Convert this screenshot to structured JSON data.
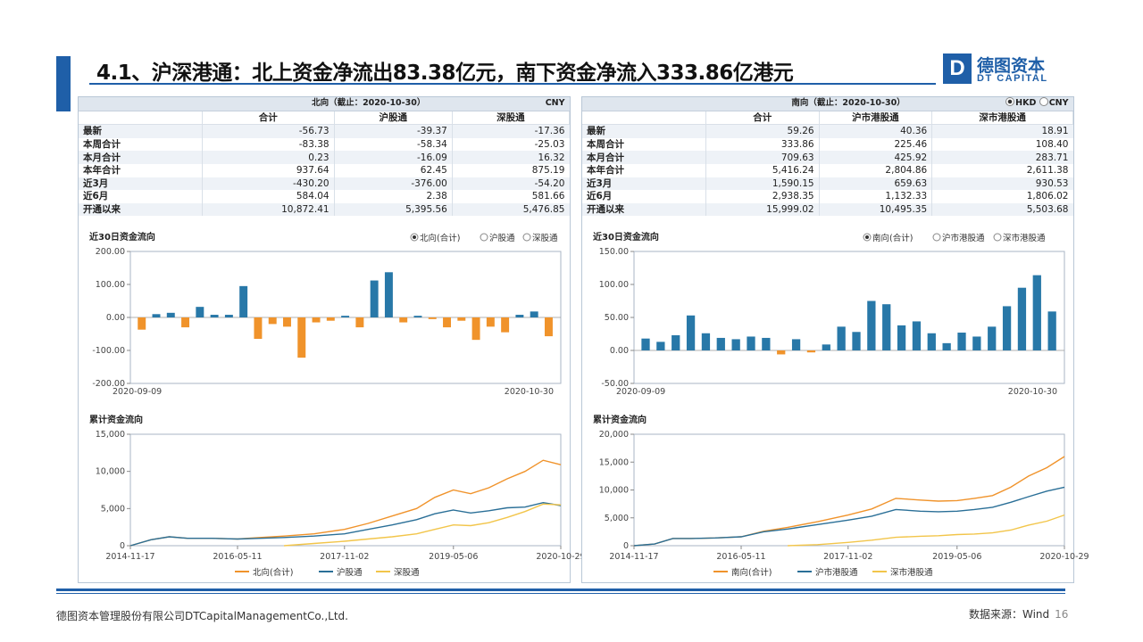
{
  "title": "4.1、沪深港通：北上资金净流出83.38亿元，南下资金净流入333.86亿港元",
  "logo": {
    "mark": "D",
    "cn": "德图资本",
    "en": "DT CAPITAL"
  },
  "footer": {
    "company": "德图资本管理股份有限公司DTCapitalManagementCo.,Ltd.",
    "source": "数据来源：Wind",
    "page": "16"
  },
  "colors": {
    "accent": "#1f5fa8",
    "bar_pos": "#2878a8",
    "bar_neg": "#f0932b",
    "line_total": "#f0932b",
    "line_a": "#2a6f97",
    "line_b": "#f2c54a"
  },
  "north": {
    "table": {
      "header": "北向（截止：2020-10-30）",
      "currency": "CNY",
      "columns": [
        "合计",
        "沪股通",
        "深股通"
      ],
      "rows": [
        {
          "label": "最新",
          "values": [
            "-56.73",
            "-39.37",
            "-17.36"
          ]
        },
        {
          "label": "本周合计",
          "values": [
            "-83.38",
            "-58.34",
            "-25.03"
          ]
        },
        {
          "label": "本月合计",
          "values": [
            "0.23",
            "-16.09",
            "16.32"
          ]
        },
        {
          "label": "本年合计",
          "values": [
            "937.64",
            "62.45",
            "875.19"
          ]
        },
        {
          "label": "近3月",
          "values": [
            "-430.20",
            "-376.00",
            "-54.20"
          ]
        },
        {
          "label": "近6月",
          "values": [
            "584.04",
            "2.38",
            "581.66"
          ]
        },
        {
          "label": "开通以来",
          "values": [
            "10,872.41",
            "5,395.56",
            "5,476.85"
          ]
        }
      ]
    },
    "chart30": {
      "title": "近30日资金流向",
      "legend": [
        "北向(合计)",
        "沪股通",
        "深股通"
      ],
      "yticks": [
        "200.00",
        "100.00",
        "0.00",
        "-100.00",
        "-200.00"
      ],
      "xticks": [
        "2020-09-09",
        "2020-10-30"
      ]
    },
    "cum": {
      "title": "累计资金流向",
      "yticks": [
        "15,000",
        "10,000",
        "5,000",
        "0"
      ],
      "xticks": [
        "2014-11-17",
        "2016-05-11",
        "2017-11-02",
        "2019-05-06",
        "2020-10-29"
      ],
      "legend": [
        "北向(合计)",
        "沪股通",
        "深股通"
      ]
    }
  },
  "south": {
    "table": {
      "header": "南向（截止：2020-10-30）",
      "currency_options": [
        "HKD",
        "CNY"
      ],
      "columns": [
        "合计",
        "沪市港股通",
        "深市港股通"
      ],
      "rows": [
        {
          "label": "最新",
          "values": [
            "59.26",
            "40.36",
            "18.91"
          ]
        },
        {
          "label": "本周合计",
          "values": [
            "333.86",
            "225.46",
            "108.40"
          ]
        },
        {
          "label": "本月合计",
          "values": [
            "709.63",
            "425.92",
            "283.71"
          ]
        },
        {
          "label": "本年合计",
          "values": [
            "5,416.24",
            "2,804.86",
            "2,611.38"
          ]
        },
        {
          "label": "近3月",
          "values": [
            "1,590.15",
            "659.63",
            "930.53"
          ]
        },
        {
          "label": "近6月",
          "values": [
            "2,938.35",
            "1,132.33",
            "1,806.02"
          ]
        },
        {
          "label": "开通以来",
          "values": [
            "15,999.02",
            "10,495.35",
            "5,503.68"
          ]
        }
      ]
    },
    "chart30": {
      "title": "近30日资金流向",
      "legend": [
        "南向(合计)",
        "沪市港股通",
        "深市港股通"
      ],
      "yticks": [
        "150.00",
        "100.00",
        "50.00",
        "0.00",
        "-50.00"
      ],
      "xticks": [
        "2020-09-09",
        "2020-10-30"
      ]
    },
    "cum": {
      "title": "累计资金流向",
      "yticks": [
        "20,000",
        "15,000",
        "10,000",
        "5,000",
        "0"
      ],
      "xticks": [
        "2014-11-17",
        "2016-05-11",
        "2017-11-02",
        "2019-05-06",
        "2020-10-29"
      ],
      "legend": [
        "南向(合计)",
        "沪市港股通",
        "深市港股通"
      ]
    }
  },
  "chart_data": [
    {
      "type": "bar",
      "title": "近30日资金流向",
      "series_name": "北向(合计)",
      "ylim": [
        -200,
        200
      ],
      "values": [
        -37,
        10,
        14,
        -30,
        32,
        8,
        8,
        95,
        -65,
        -20,
        -28,
        -122,
        -15,
        -10,
        5,
        -30,
        112,
        137,
        -15,
        5,
        -5,
        -30,
        -10,
        -68,
        -28,
        -45,
        8,
        18,
        -57
      ]
    },
    {
      "type": "bar",
      "title": "近30日资金流向",
      "series_name": "南向(合计)",
      "ylim": [
        -50,
        150
      ],
      "values": [
        18,
        13,
        23,
        53,
        26,
        19,
        17,
        21,
        19,
        -6,
        17,
        -3,
        9,
        36,
        28,
        75,
        70,
        38,
        44,
        26,
        11,
        27,
        21,
        36,
        67,
        95,
        114,
        59
      ]
    },
    {
      "type": "line",
      "title": "累计资金流向",
      "ylim": [
        0,
        15000
      ],
      "x": [
        "2014-11-17",
        "2015-03-01",
        "2015-06-01",
        "2015-09-01",
        "2016-01-01",
        "2016-05-11",
        "2016-09-01",
        "2017-01-01",
        "2017-06-01",
        "2017-11-02",
        "2018-03-01",
        "2018-07-01",
        "2018-11-01",
        "2019-02-01",
        "2019-05-06",
        "2019-08-01",
        "2019-11-01",
        "2020-02-01",
        "2020-05-01",
        "2020-08-01",
        "2020-10-29"
      ],
      "series": [
        {
          "name": "北向(合计)",
          "values": [
            0,
            800,
            1200,
            1000,
            1000,
            900,
            1100,
            1300,
            1600,
            2200,
            3000,
            4000,
            5000,
            6500,
            7500,
            7000,
            7800,
            9000,
            10000,
            11500,
            10900
          ]
        },
        {
          "name": "沪股通",
          "values": [
            0,
            800,
            1200,
            1000,
            1000,
            900,
            1000,
            1100,
            1300,
            1600,
            2200,
            2800,
            3500,
            4300,
            4800,
            4400,
            4700,
            5100,
            5200,
            5800,
            5400
          ]
        },
        {
          "name": "深股通",
          "values": [
            null,
            null,
            null,
            null,
            null,
            null,
            null,
            0,
            300,
            600,
            900,
            1200,
            1600,
            2200,
            2800,
            2700,
            3100,
            3800,
            4600,
            5600,
            5500
          ]
        }
      ]
    },
    {
      "type": "line",
      "title": "累计资金流向",
      "ylim": [
        0,
        20000
      ],
      "x": [
        "2014-11-17",
        "2015-03-01",
        "2015-06-01",
        "2015-09-01",
        "2016-01-01",
        "2016-05-11",
        "2016-09-01",
        "2017-01-01",
        "2017-06-01",
        "2017-11-02",
        "2018-03-01",
        "2018-07-01",
        "2018-11-01",
        "2019-02-01",
        "2019-05-06",
        "2019-08-01",
        "2019-11-01",
        "2020-02-01",
        "2020-05-01",
        "2020-08-01",
        "2020-10-29"
      ],
      "series": [
        {
          "name": "南向(合计)",
          "values": [
            0,
            300,
            1300,
            1300,
            1400,
            1600,
            2600,
            3300,
            4300,
            5500,
            6600,
            8500,
            8200,
            8000,
            8100,
            8500,
            9000,
            10500,
            12500,
            14000,
            16000
          ]
        },
        {
          "name": "沪市港股通",
          "values": [
            0,
            300,
            1300,
            1300,
            1400,
            1600,
            2500,
            3000,
            3800,
            4600,
            5300,
            6500,
            6200,
            6100,
            6200,
            6500,
            6900,
            7800,
            8800,
            9800,
            10500
          ]
        },
        {
          "name": "深市港股通",
          "values": [
            null,
            null,
            null,
            null,
            null,
            null,
            null,
            0,
            200,
            600,
            1000,
            1500,
            1700,
            1800,
            2000,
            2100,
            2300,
            2800,
            3700,
            4400,
            5500
          ]
        }
      ]
    }
  ]
}
